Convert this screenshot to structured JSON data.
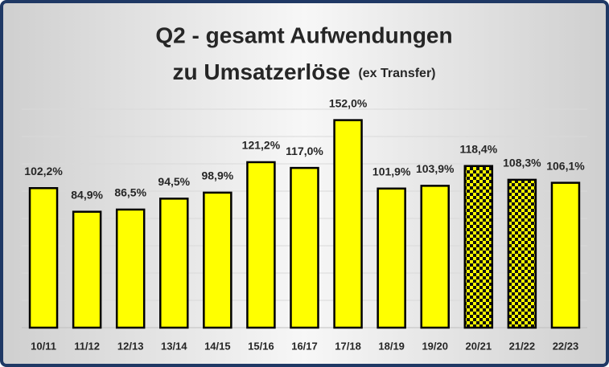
{
  "chart_data": {
    "type": "bar",
    "title": [
      "Q2 - gesamt Aufwendungen",
      "zu Umsatzerlöse"
    ],
    "subtitle": "(ex Transfer)",
    "categories": [
      "10/11",
      "11/12",
      "12/13",
      "13/14",
      "14/15",
      "15/16",
      "16/17",
      "17/18",
      "18/19",
      "19/20",
      "20/21",
      "21/22",
      "22/23"
    ],
    "values": [
      102.2,
      84.9,
      86.5,
      94.5,
      98.9,
      121.2,
      117.0,
      152.0,
      101.9,
      103.9,
      118.4,
      108.3,
      106.1
    ],
    "value_labels": [
      "102,2%",
      "84,9%",
      "86,5%",
      "94,5%",
      "98,9%",
      "121,2%",
      "117,0%",
      "152,0%",
      "101,9%",
      "103,9%",
      "118,4%",
      "108,3%",
      "106,1%"
    ],
    "bar_styles": [
      "solid",
      "solid",
      "solid",
      "solid",
      "solid",
      "solid",
      "solid",
      "solid",
      "solid",
      "solid",
      "checkered",
      "checkered",
      "solid"
    ],
    "color": "#ffff00",
    "ylim": [
      0,
      160
    ],
    "yticks": [
      0,
      20,
      40,
      60,
      80,
      100,
      120,
      140,
      160
    ],
    "grid": true
  }
}
